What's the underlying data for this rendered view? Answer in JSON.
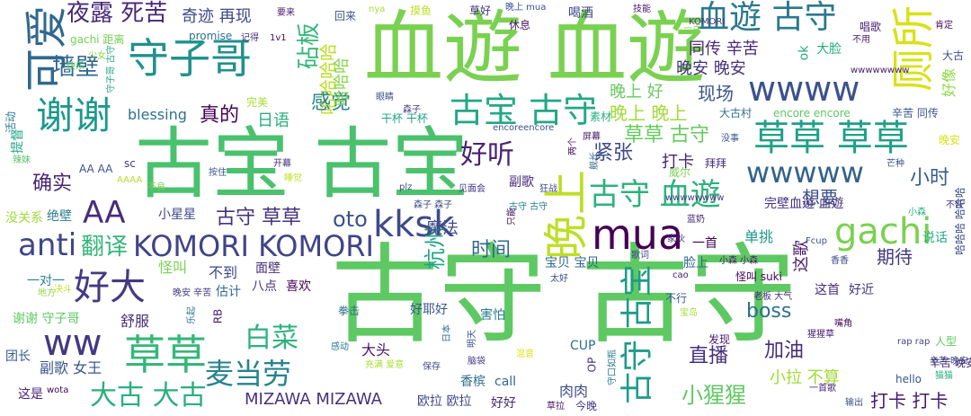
{
  "words": [
    {
      "text": "古守 古守",
      "color": "#5ec962"
    },
    {
      "text": "血遊 血遊",
      "color": "#7ad151"
    },
    {
      "text": "古宝 古宝",
      "color": "#4ac16d"
    },
    {
      "text": "守子哥",
      "color": "#21918c"
    },
    {
      "text": "血遊 古守",
      "color": "#2a788e"
    },
    {
      "text": "草草 草草",
      "color": "#1fa187"
    },
    {
      "text": "wwww",
      "color": "#3b528b"
    },
    {
      "text": "古宝 古守",
      "color": "#22a884"
    },
    {
      "text": "谢谢",
      "color": "#1f988b"
    },
    {
      "text": "可爱",
      "color": "#31688e"
    },
    {
      "text": "厕所",
      "color": "#d8e219"
    },
    {
      "text": "mua",
      "color": "#440154"
    },
    {
      "text": "kksk",
      "color": "#3e4a89"
    },
    {
      "text": "晚上",
      "color": "#bddf26"
    },
    {
      "text": "gachi",
      "color": "#7ad151"
    },
    {
      "text": "好大",
      "color": "#443983"
    },
    {
      "text": "KOMORI KOMORI",
      "color": "#414487"
    },
    {
      "text": "古守 血遊",
      "color": "#2db27d"
    },
    {
      "text": "wwwww",
      "color": "#33638d"
    },
    {
      "text": "草草",
      "color": "#35b779"
    },
    {
      "text": "ww",
      "color": "#453882"
    },
    {
      "text": "anti",
      "color": "#404688"
    },
    {
      "text": "AA",
      "color": "#472d7b"
    },
    {
      "text": "古守 古宝",
      "color": "#1e9b8a"
    },
    {
      "text": "大古 大古",
      "color": "#2ab07f"
    },
    {
      "text": "麦当劳",
      "color": "#26828e"
    },
    {
      "text": "哈哈哈哈",
      "color": "#bddf26"
    },
    {
      "text": "白菜",
      "color": "#2db27d"
    },
    {
      "text": "好听",
      "color": "#482173"
    },
    {
      "text": "杭州",
      "color": "#20a486"
    },
    {
      "text": "翻译",
      "color": "#35b779"
    },
    {
      "text": "古守 草草",
      "color": "#46337e"
    },
    {
      "text": "oto",
      "color": "#3b528b"
    },
    {
      "text": "小猩猩",
      "color": "#5ec962"
    },
    {
      "text": "草草 古守",
      "color": "#65cb5e"
    },
    {
      "text": "夜露 死苦",
      "color": "#482878"
    },
    {
      "text": "墙壁",
      "color": "#31688e"
    },
    {
      "text": "感觉",
      "color": "#26828e"
    },
    {
      "text": "哈哈哈",
      "color": "#86d549"
    },
    {
      "text": "砧板",
      "color": "#35b779"
    },
    {
      "text": "确实",
      "color": "#482475"
    },
    {
      "text": "真的",
      "color": "#440154"
    },
    {
      "text": "紧张",
      "color": "#3e4a89"
    },
    {
      "text": "晚上 晚上",
      "color": "#a2da37"
    },
    {
      "text": "小时",
      "color": "#365c8d"
    },
    {
      "text": "时间",
      "color": "#31688e"
    },
    {
      "text": "现场",
      "color": "#3b528b"
    },
    {
      "text": "同传 辛苦",
      "color": "#482878"
    },
    {
      "text": "晚安 晚安",
      "color": "#46327e"
    },
    {
      "text": "奇迹 再现",
      "color": "#3e4a89"
    },
    {
      "text": "打卡",
      "color": "#482475"
    },
    {
      "text": "直播",
      "color": "#472f7d"
    },
    {
      "text": "boss",
      "color": "#2d708e"
    },
    {
      "text": "加油",
      "color": "#472d7b"
    },
    {
      "text": "期待",
      "color": "#453882"
    },
    {
      "text": "想要",
      "color": "#3b528b"
    },
    {
      "text": "单挑",
      "color": "#1f988b"
    },
    {
      "text": "魔法",
      "color": "#3e4a89"
    },
    {
      "text": "MIZAWA MIZAWA",
      "color": "#46337e"
    },
    {
      "text": "打卡 打卡",
      "color": "#481a6c"
    },
    {
      "text": "小拉 不算",
      "color": "#a2da37"
    },
    {
      "text": "日语",
      "color": "#29af7f"
    },
    {
      "text": "blessing",
      "color": "#2c728e"
    },
    {
      "text": "ok",
      "color": "#22a884"
    },
    {
      "text": "大脸",
      "color": "#27ad81"
    },
    {
      "text": "这歌",
      "color": "#481a6c"
    },
    {
      "text": "说话",
      "color": "#25ab82"
    },
    {
      "text": "晚上 好",
      "color": "#65cb5e"
    },
    {
      "text": "好像",
      "color": "#8fd744"
    },
    {
      "text": "不到",
      "color": "#3f4788"
    },
    {
      "text": "怪叫",
      "color": "#7ad151"
    },
    {
      "text": "面壁",
      "color": "#472d7b"
    },
    {
      "text": "宝贝 宝贝",
      "color": "#31688e"
    },
    {
      "text": "舒服",
      "color": "#472a7a"
    },
    {
      "text": "谢谢 守子哥",
      "color": "#5ec962"
    },
    {
      "text": "副歌 女王",
      "color": "#39558c"
    },
    {
      "text": "大头",
      "color": "#481769"
    },
    {
      "text": "欧拉 欧拉",
      "color": "#3f4788"
    },
    {
      "text": "好好",
      "color": "#482878"
    },
    {
      "text": "香槟",
      "color": "#2d708e"
    },
    {
      "text": "call",
      "color": "#306a8e"
    },
    {
      "text": "肉肉",
      "color": "#3e4a89"
    },
    {
      "text": "这是",
      "color": "#482475"
    },
    {
      "text": "团长",
      "color": "#365c8d"
    },
    {
      "text": "AA AA",
      "color": "#3b528b"
    },
    {
      "text": "小星星",
      "color": "#3f4788"
    },
    {
      "text": "一首",
      "color": "#440154"
    },
    {
      "text": "脸上",
      "color": "#31688e"
    },
    {
      "text": "害怕",
      "color": "#287d8e"
    },
    {
      "text": "拳击",
      "color": "#2d708e"
    },
    {
      "text": "好耶好",
      "color": "#39558c"
    },
    {
      "text": "发现",
      "color": "#481769"
    },
    {
      "text": "CUP",
      "color": "#2c728e"
    },
    {
      "text": "估计",
      "color": "#306a8e"
    },
    {
      "text": "喜欢",
      "color": "#450457"
    },
    {
      "text": "八点",
      "color": "#46307e"
    },
    {
      "text": "不良",
      "color": "#7ad151"
    },
    {
      "text": "没关系",
      "color": "#a0da39"
    },
    {
      "text": "绝壁",
      "color": "#297b8e"
    },
    {
      "text": "一对一",
      "color": "#27808e"
    },
    {
      "text": "晚安 辛苦",
      "color": "#443b84"
    },
    {
      "text": "这首",
      "color": "#472c7a"
    },
    {
      "text": "好近",
      "color": "#453882"
    },
    {
      "text": "不行",
      "color": "#375a8c"
    },
    {
      "text": "辛苦 同传",
      "color": "#39568c"
    },
    {
      "text": "辛苦 晚安",
      "color": "#3d4e8a"
    },
    {
      "text": "大古村",
      "color": "#2d718e"
    },
    {
      "text": "encore encore",
      "color": "#5ec962"
    },
    {
      "text": "完美",
      "color": "#a8db34"
    },
    {
      "text": "副歌",
      "color": "#472a7a"
    },
    {
      "text": "gachi 距离",
      "color": "#73d056"
    },
    {
      "text": "promise",
      "color": "#2d718e"
    },
    {
      "text": "记得",
      "color": "#46307e"
    },
    {
      "text": "1v1",
      "color": "#46085c"
    },
    {
      "text": "要来",
      "color": "#481b6d"
    },
    {
      "text": "回来",
      "color": "#3b528b"
    },
    {
      "text": "nya",
      "color": "#aadc32"
    },
    {
      "text": "摸鱼",
      "color": "#bddf26"
    },
    {
      "text": "草好",
      "color": "#46327e"
    },
    {
      "text": "晚上 mua",
      "color": "#3b528b"
    },
    {
      "text": "休息",
      "color": "#481769"
    },
    {
      "text": "喝酒",
      "color": "#3f4788"
    },
    {
      "text": "技能",
      "color": "#481a6c"
    },
    {
      "text": "一点",
      "color": "#86d549"
    },
    {
      "text": "KOMORI",
      "color": "#453781"
    },
    {
      "text": "唱歌",
      "color": "#482475"
    },
    {
      "text": "肯定",
      "color": "#46085c"
    },
    {
      "text": "不用",
      "color": "#481f70"
    },
    {
      "text": "大古",
      "color": "#3a548c"
    },
    {
      "text": "少女",
      "color": "#8fd744"
    },
    {
      "text": "快乐",
      "color": "#5ec962"
    },
    {
      "text": "活动",
      "color": "#2a788e"
    },
    {
      "text": "提督",
      "color": "#20a486"
    },
    {
      "text": "辣妹",
      "color": "#54c568"
    },
    {
      "text": "眼睛",
      "color": "#3d4e8a"
    },
    {
      "text": "森子",
      "color": "#443983"
    },
    {
      "text": "干杯 干杯",
      "color": "#1fa187"
    },
    {
      "text": "encoreencore",
      "color": "#3b528b"
    },
    {
      "text": "素材",
      "color": "#26ad81"
    },
    {
      "text": "屏幕",
      "color": "#481769"
    },
    {
      "text": "没事",
      "color": "#39568c"
    },
    {
      "text": "晚安",
      "color": "#d8e219"
    },
    {
      "text": "威尔",
      "color": "#7ad151"
    },
    {
      "text": "拜拜",
      "color": "#472d7b"
    },
    {
      "text": "芒种",
      "color": "#3b528b"
    },
    {
      "text": "按住",
      "color": "#3b528b"
    },
    {
      "text": "开幕",
      "color": "#46327e"
    },
    {
      "text": "睡觉",
      "color": "#c2df23"
    },
    {
      "text": "AAAA",
      "color": "#b5de2b"
    },
    {
      "text": "sc",
      "color": "#453781"
    },
    {
      "text": "plz",
      "color": "#3e4a89"
    },
    {
      "text": "见面会",
      "color": "#443983"
    },
    {
      "text": "狂战",
      "color": "#3d4e8a"
    },
    {
      "text": "森子 森子",
      "color": "#3d4e8a"
    },
    {
      "text": "歌词",
      "color": "#3f4788"
    },
    {
      "text": "家伙",
      "color": "#482878"
    },
    {
      "text": "小森 小森",
      "color": "#481a6c"
    },
    {
      "text": "Fcup",
      "color": "#3b528b"
    },
    {
      "text": "香香",
      "color": "#3e4a89"
    },
    {
      "text": "怪叫 suki",
      "color": "#46085c"
    },
    {
      "text": "老板 大气",
      "color": "#472d7b"
    },
    {
      "text": "嘴角",
      "color": "#440154"
    },
    {
      "text": "猩猩草",
      "color": "#481a6c"
    },
    {
      "text": "rap rap",
      "color": "#3f4788"
    },
    {
      "text": "人型",
      "color": "#5ec962"
    },
    {
      "text": "辛苦 晚安",
      "color": "#472d7b"
    },
    {
      "text": "猫猫",
      "color": "#27ad81"
    },
    {
      "text": "hello",
      "color": "#39568c"
    },
    {
      "text": "输出",
      "color": "#3d4e8a"
    },
    {
      "text": "一首歌",
      "color": "#482475"
    },
    {
      "text": "充满 爱意",
      "color": "#aadc32"
    },
    {
      "text": "宝岛",
      "color": "#a8db34"
    },
    {
      "text": "地方",
      "color": "#8fd744"
    },
    {
      "text": "决斗",
      "color": "#bddf26"
    },
    {
      "text": "wota",
      "color": "#440154"
    },
    {
      "text": "今晚",
      "color": "#453781"
    },
    {
      "text": "草拉",
      "color": "#481769"
    },
    {
      "text": "感动",
      "color": "#2a788e"
    },
    {
      "text": "日本",
      "color": "#2d708e"
    },
    {
      "text": "明天",
      "color": "#3b528b"
    },
    {
      "text": "脑袋",
      "color": "#453882"
    },
    {
      "text": "混音",
      "color": "#d8e219"
    },
    {
      "text": "不任",
      "color": "#46307e"
    },
    {
      "text": "wwwwwwww",
      "color": "#481a6c"
    },
    {
      "text": "两个",
      "color": "#481769"
    },
    {
      "text": "舰长",
      "color": "#306a8e"
    },
    {
      "text": "古守 古守",
      "color": "#287d8e"
    },
    {
      "text": "只能",
      "color": "#46085c"
    },
    {
      "text": "守口如瓶",
      "color": "#2a788e"
    },
    {
      "text": "守子哥 古守",
      "color": "#22a884"
    },
    {
      "text": "完壁血遊 血遊",
      "color": "#46327e"
    },
    {
      "text": "哈哈哈 哈哈哈",
      "color": "#3d4e8a"
    },
    {
      "text": "小森",
      "color": "#27ad81"
    },
    {
      "text": "wwwwwwww",
      "color": "#453882"
    },
    {
      "text": "蓝奶",
      "color": "#481a6c"
    },
    {
      "text": "RB",
      "color": "#482475"
    },
    {
      "text": "乐起",
      "color": "#2d708e"
    },
    {
      "text": "OP",
      "color": "#46337e"
    },
    {
      "text": "保存",
      "color": "#3f4788"
    },
    {
      "text": "cao",
      "color": "#481769"
    },
    {
      "text": "太好",
      "color": "#3e4a89"
    }
  ]
}
